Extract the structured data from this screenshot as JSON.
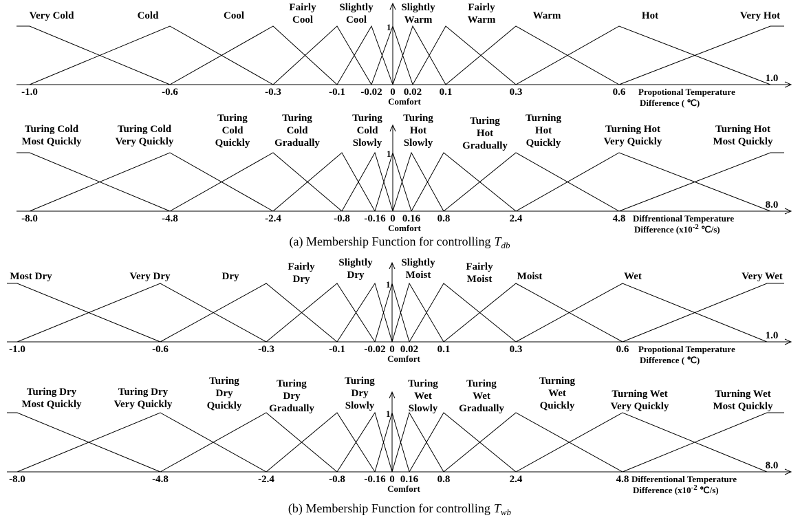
{
  "panels": [
    {
      "sets": [
        {
          "lines": [
            "Very Cold"
          ]
        },
        {
          "lines": [
            "Cold"
          ]
        },
        {
          "lines": [
            "Cool"
          ]
        },
        {
          "lines": [
            "Fairly",
            "Cool"
          ]
        },
        {
          "lines": [
            "Slightly",
            "Cool"
          ]
        },
        {
          "lines": []
        },
        {
          "lines": [
            "Slightly",
            "Warm"
          ]
        },
        {
          "lines": [
            "Fairly",
            "Warm"
          ]
        },
        {
          "lines": [
            "Warm"
          ]
        },
        {
          "lines": [
            "Hot"
          ]
        },
        {
          "lines": [
            "Very Hot"
          ]
        }
      ],
      "ticks": [
        "-1.0",
        "-0.6",
        "-0.3",
        "-0.1",
        "-0.02",
        "0",
        "0.02",
        "0.1",
        "0.3",
        "0.6"
      ],
      "end_tick": "1.0",
      "unit_label": "1",
      "comfort": "Comfort",
      "axis_title": {
        "line1": "Propotional Temperature",
        "line2": "Difference ( ℃)"
      }
    },
    {
      "sets": [
        {
          "lines": [
            "Turing Cold",
            "Most Quickly"
          ]
        },
        {
          "lines": [
            "Turing Cold",
            "Very Quickly"
          ]
        },
        {
          "lines": [
            "Turing",
            "Cold",
            "Quickly"
          ]
        },
        {
          "lines": [
            "Turing",
            "Cold",
            "Gradually"
          ]
        },
        {
          "lines": [
            "Turing",
            "Cold",
            "Slowly"
          ]
        },
        {
          "lines": []
        },
        {
          "lines": [
            "Turing",
            "Hot",
            "Slowly"
          ]
        },
        {
          "lines": [
            "Turing",
            "Hot",
            "Gradually"
          ]
        },
        {
          "lines": [
            "Turning",
            "Hot",
            "Quickly"
          ]
        },
        {
          "lines": [
            "Turning Hot",
            "Very Quickly"
          ]
        },
        {
          "lines": [
            "Turning Hot",
            "Most Quickly"
          ]
        }
      ],
      "ticks": [
        "-8.0",
        "-4.8",
        "-2.4",
        "-0.8",
        "-0.16",
        "0",
        "0.16",
        "0.8",
        "2.4",
        "4.8"
      ],
      "end_tick": "8.0",
      "unit_label": "1",
      "comfort": "Comfort",
      "axis_title": {
        "line1": "Diffrentional Temperature",
        "line2": "Difference (x10",
        "exponent": "-2",
        "line2_end": " ℃/s)"
      }
    },
    {
      "sets": [
        {
          "lines": [
            "Most Dry"
          ]
        },
        {
          "lines": [
            "Very Dry"
          ]
        },
        {
          "lines": [
            "Dry"
          ]
        },
        {
          "lines": [
            "Fairly",
            "Dry"
          ]
        },
        {
          "lines": [
            "Slightly",
            "Dry"
          ]
        },
        {
          "lines": []
        },
        {
          "lines": [
            "Slightly",
            "Moist"
          ]
        },
        {
          "lines": [
            "Fairly",
            "Moist"
          ]
        },
        {
          "lines": [
            "Moist"
          ]
        },
        {
          "lines": [
            "Wet"
          ]
        },
        {
          "lines": [
            "Very Wet"
          ]
        }
      ],
      "ticks": [
        "-1.0",
        "-0.6",
        "-0.3",
        "-0.1",
        "-0.02",
        "0",
        "0.02",
        "0.1",
        "0.3",
        "0.6"
      ],
      "end_tick": "1.0",
      "unit_label": "1",
      "comfort": "Comfort",
      "axis_title": {
        "line1": "Propotional Temperature",
        "line2": "Difference ( ℃)"
      }
    },
    {
      "sets": [
        {
          "lines": [
            "Turing Dry",
            "Most Quickly"
          ]
        },
        {
          "lines": [
            "Turing Dry",
            "Very Quickly"
          ]
        },
        {
          "lines": [
            "Turing",
            "Dry",
            "Quickly"
          ]
        },
        {
          "lines": [
            "Turing",
            "Dry",
            "Gradually"
          ]
        },
        {
          "lines": [
            "Turing",
            "Dry",
            "Slowly"
          ]
        },
        {
          "lines": []
        },
        {
          "lines": [
            "Turing",
            "Wet",
            "Slowly"
          ]
        },
        {
          "lines": [
            "Turing",
            "Wet",
            "Gradually"
          ]
        },
        {
          "lines": [
            "Turning",
            "Wet",
            "Quickly"
          ]
        },
        {
          "lines": [
            "Turning Wet",
            "Very Quickly"
          ]
        },
        {
          "lines": [
            "Turning Wet",
            "Most Quickly"
          ]
        }
      ],
      "ticks": [
        "-8.0",
        "-4.8",
        "-2.4",
        "-0.8",
        "-0.16",
        "0",
        "0.16",
        "0.8",
        "2.4",
        "4.8"
      ],
      "end_tick": "8.0",
      "unit_label": "1",
      "comfort": "Comfort",
      "axis_title": {
        "line1": "Differentional Temperature",
        "line2": "Difference (x10",
        "exponent": "-2",
        "line2_end": " ℃/s)"
      }
    }
  ],
  "captions": [
    {
      "text": "(a) Membership Function for controlling",
      "symbol": "T",
      "subscript": "db"
    },
    {
      "text": "(b) Membership Function for controlling",
      "symbol": "T",
      "subscript": "wb"
    }
  ]
}
